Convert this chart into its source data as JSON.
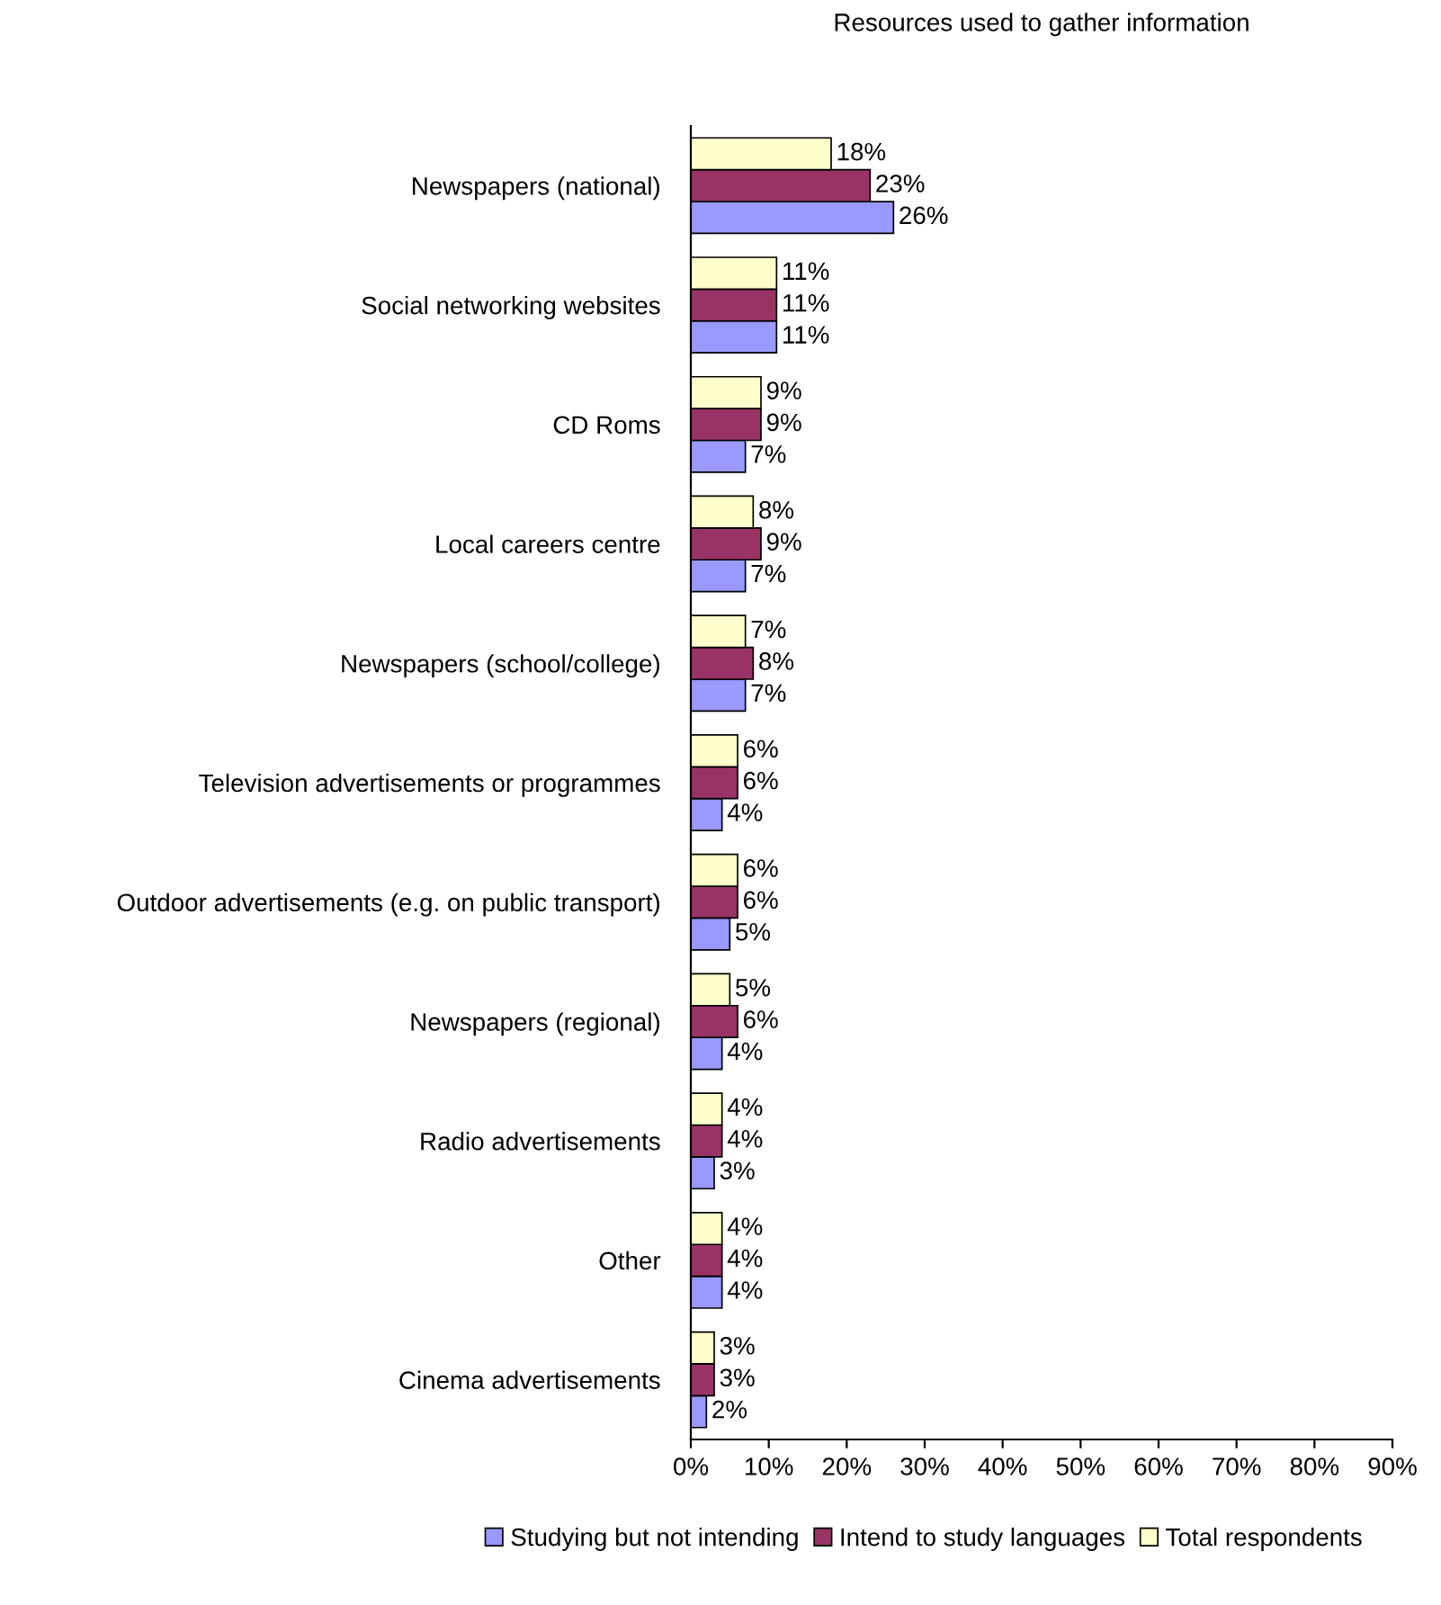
{
  "chart_data": {
    "type": "bar",
    "orientation": "horizontal",
    "title": "Resources used to gather information",
    "categories": [
      "Newspapers (national)",
      "Social networking websites",
      "CD Roms",
      "Local careers centre",
      "Newspapers (school/college)",
      "Television advertisements or programmes",
      "Outdoor advertisements (e.g. on public transport)",
      "Newspapers (regional)",
      "Radio advertisements",
      "Other",
      "Cinema advertisements"
    ],
    "series": [
      {
        "name": "Studying but not intending",
        "color": "#9999ff",
        "values": [
          26,
          11,
          7,
          7,
          7,
          4,
          5,
          4,
          3,
          4,
          2
        ],
        "value_labels": [
          "26%",
          "11%",
          "7%",
          "7%",
          "7%",
          "4%",
          "5%",
          "4%",
          "3%",
          "4%",
          "2%"
        ]
      },
      {
        "name": "Intend to study languages",
        "color": "#993366",
        "values": [
          23,
          11,
          9,
          9,
          8,
          6,
          6,
          6,
          4,
          4,
          3
        ],
        "value_labels": [
          "23%",
          "11%",
          "9%",
          "9%",
          "8%",
          "6%",
          "6%",
          "6%",
          "4%",
          "4%",
          "3%"
        ]
      },
      {
        "name": "Total respondents",
        "color": "#ffffcc",
        "values": [
          18,
          11,
          9,
          8,
          7,
          6,
          6,
          5,
          4,
          4,
          3
        ],
        "value_labels": [
          "18%",
          "11%",
          "9%",
          "8%",
          "7%",
          "6%",
          "6%",
          "5%",
          "4%",
          "4%",
          "3%"
        ]
      }
    ],
    "xlim": [
      0,
      90
    ],
    "xticks": [
      {
        "value": 0,
        "label": "0%"
      },
      {
        "value": 10,
        "label": "10%"
      },
      {
        "value": 20,
        "label": "20%"
      },
      {
        "value": 30,
        "label": "30%"
      },
      {
        "value": 40,
        "label": "40%"
      },
      {
        "value": 50,
        "label": "50%"
      },
      {
        "value": 60,
        "label": "60%"
      },
      {
        "value": 70,
        "label": "70%"
      },
      {
        "value": 80,
        "label": "80%"
      },
      {
        "value": 90,
        "label": "90%"
      }
    ],
    "legend": "bottom",
    "grid": false
  }
}
